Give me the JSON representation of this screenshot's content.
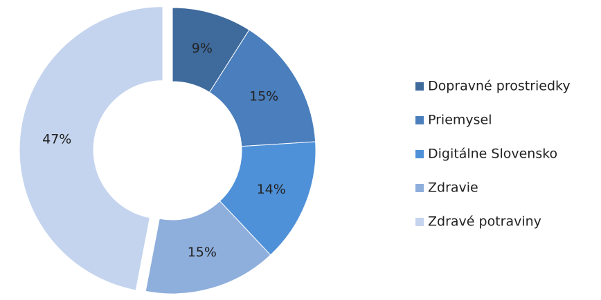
{
  "chart_data": {
    "type": "donut",
    "categories": [
      "Dopravné prostriedky",
      "Priemysel",
      "Digitálne Slovensko",
      "Zdravie",
      "Zdravé potraviny"
    ],
    "values": [
      9,
      15,
      14,
      15,
      47
    ],
    "value_labels": [
      "9%",
      "15%",
      "14%",
      "15%",
      "47%"
    ],
    "colors": [
      "#3e6a9c",
      "#4a7ebc",
      "#4f91d8",
      "#8eaedc",
      "#c4d4ee"
    ],
    "legend": "right"
  }
}
